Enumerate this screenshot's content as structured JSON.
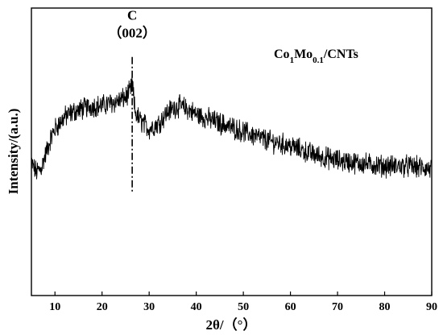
{
  "chart_data": {
    "type": "line",
    "xlabel": "2θ/（°）",
    "ylabel": "Intensity/(a.u.)",
    "xlim": [
      5,
      90
    ],
    "ylim": [
      0,
      100
    ],
    "xticks": [
      10,
      20,
      30,
      40,
      50,
      60,
      70,
      80,
      90
    ],
    "grid": false,
    "legend": {
      "position": "top-right",
      "parts": [
        {
          "text": "Co",
          "sub": false
        },
        {
          "text": "1",
          "sub": true
        },
        {
          "text": "Mo",
          "sub": false
        },
        {
          "text": "0.1",
          "sub": true
        },
        {
          "text": "/CNTs",
          "sub": false
        }
      ]
    },
    "annotation": {
      "label": "C",
      "label2": "（002）",
      "x": 26.4,
      "y_top": 83,
      "y_bottom": 36
    },
    "series": [
      {
        "color": "#000000",
        "x": [
          5,
          6,
          7,
          8,
          9,
          10,
          12,
          14,
          16,
          18,
          20,
          22,
          24,
          25,
          26,
          26.4,
          27,
          28,
          30,
          32,
          34,
          36,
          38,
          40,
          45,
          50,
          55,
          60,
          65,
          70,
          75,
          80,
          85,
          90
        ],
        "y": [
          46,
          43,
          44,
          49,
          54,
          58,
          62,
          64,
          65,
          66,
          66,
          67,
          68,
          69,
          71,
          74,
          64,
          61,
          58,
          60,
          64,
          66,
          65,
          63,
          60,
          57,
          54,
          52,
          49,
          47,
          46,
          45,
          45,
          44
        ]
      }
    ]
  }
}
